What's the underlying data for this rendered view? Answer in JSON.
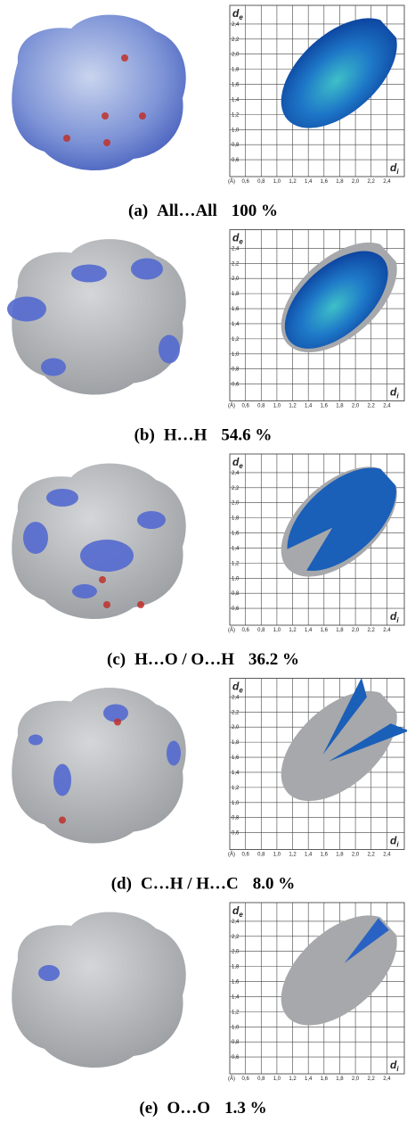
{
  "plot": {
    "unit": "(Å)",
    "y_label": {
      "main": "d",
      "sub": "e"
    },
    "x_label": {
      "main": "d",
      "sub": "i"
    },
    "ticks": [
      {
        "value": 0.6,
        "label": "0,6"
      },
      {
        "value": 0.8,
        "label": "0,8"
      },
      {
        "value": 1.0,
        "label": "1,0"
      },
      {
        "value": 1.2,
        "label": "1,2"
      },
      {
        "value": 1.4,
        "label": "1,4"
      },
      {
        "value": 1.6,
        "label": "1,6"
      },
      {
        "value": 1.8,
        "label": "1,8"
      },
      {
        "value": 2.0,
        "label": "2,0"
      },
      {
        "value": 2.2,
        "label": "2,2"
      },
      {
        "value": 2.4,
        "label": "2,4"
      }
    ],
    "lim": [
      0.4,
      2.6
    ]
  },
  "panels": [
    {
      "label": "(a)",
      "contact": "All…All",
      "percent": "100 %"
    },
    {
      "label": "(b)",
      "contact": "H…H",
      "percent": "54.6 %"
    },
    {
      "label": "(c)",
      "contact": "H…O / O…H",
      "percent": "36.2 %"
    },
    {
      "label": "(d)",
      "contact": "C…H / H…C",
      "percent": "8.0 %"
    },
    {
      "label": "(e)",
      "contact": "O…O",
      "percent": "1.3 %"
    }
  ]
}
